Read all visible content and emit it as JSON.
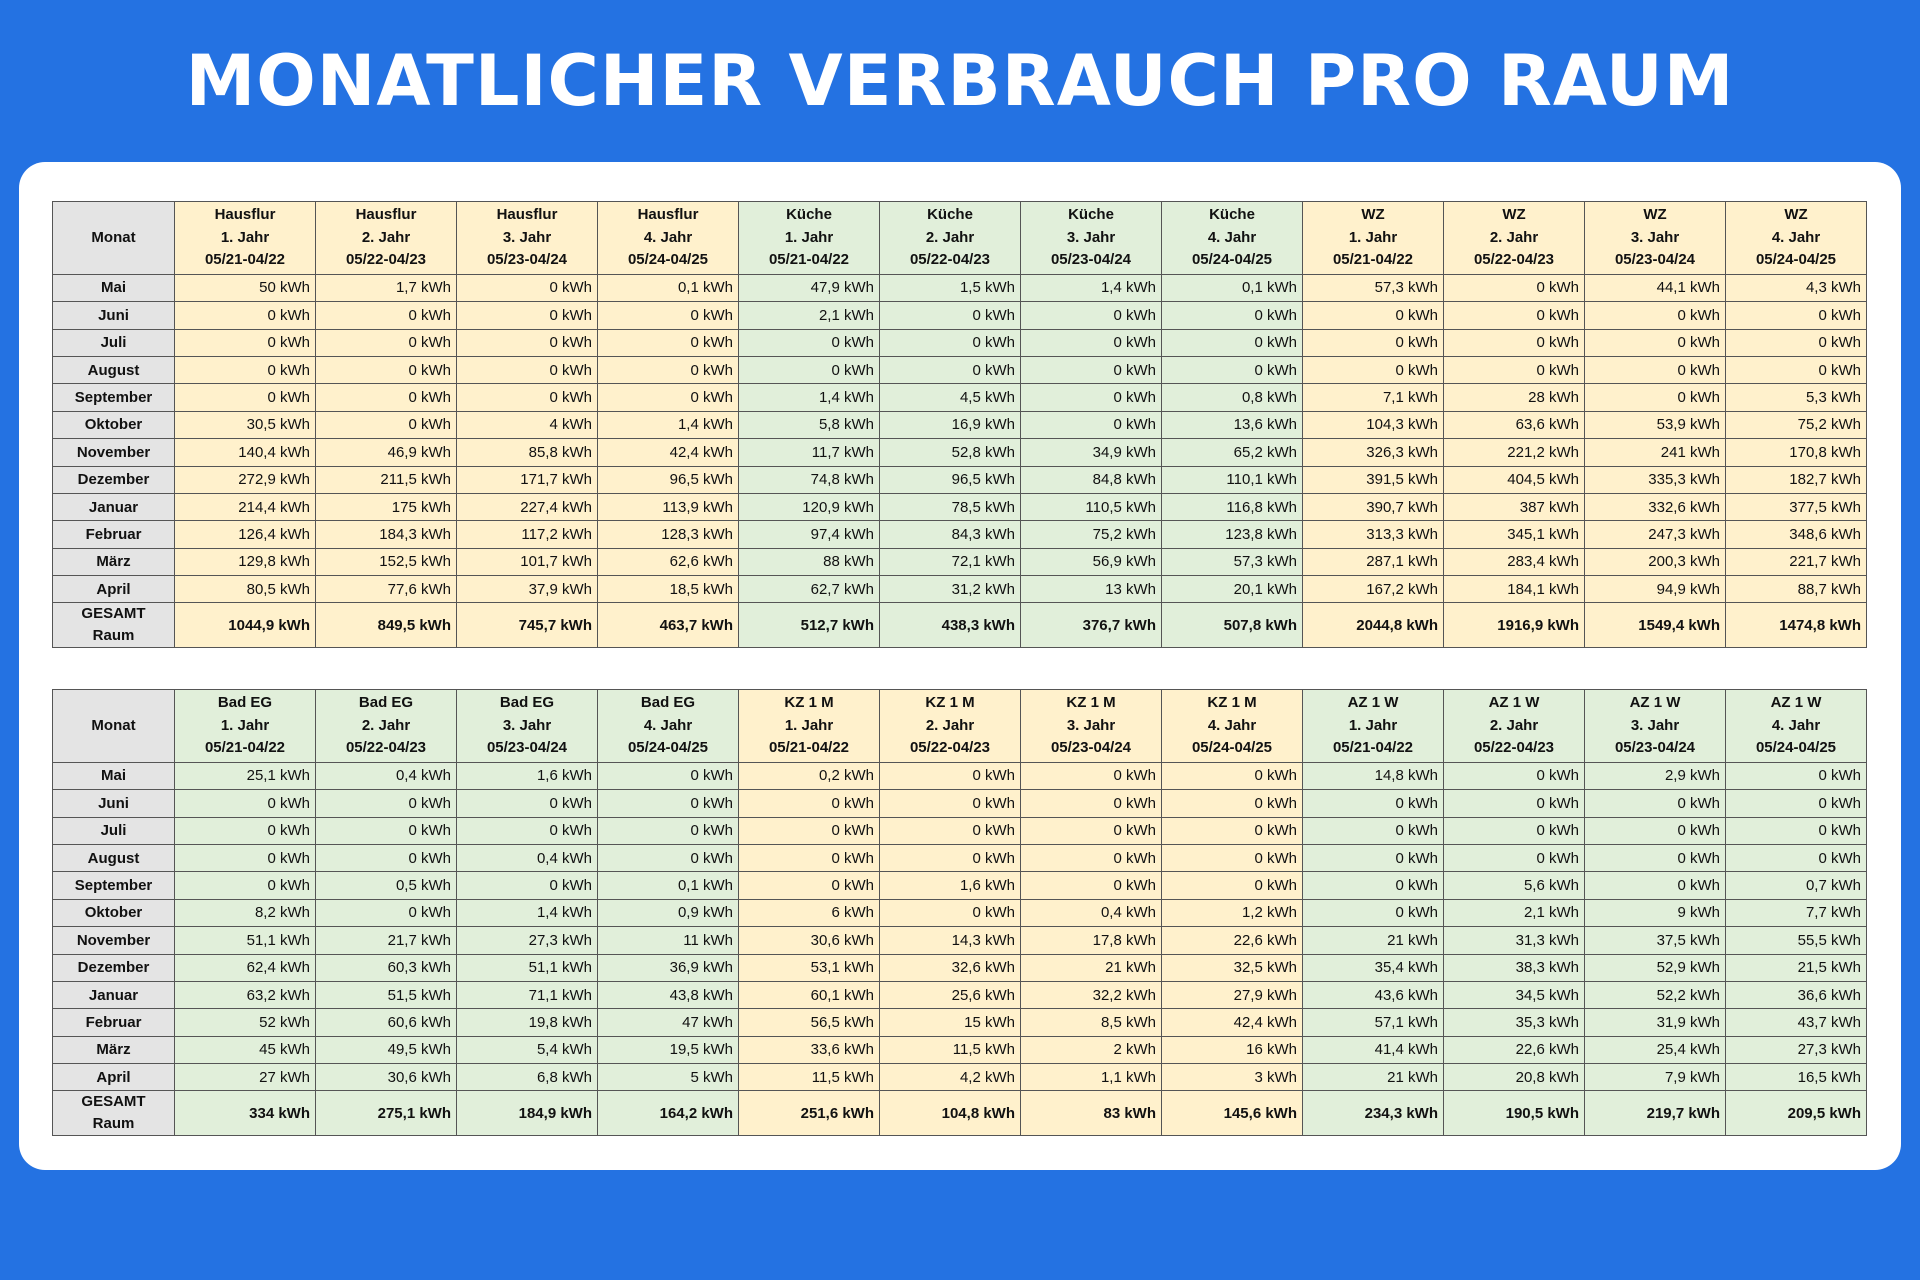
{
  "page_title": "MONATLICHER VERBRAUCH PRO RAUM",
  "month_header": "Monat",
  "months": [
    "Mai",
    "Juni",
    "Juli",
    "August",
    "September",
    "Oktober",
    "November",
    "Dezember",
    "Januar",
    "Februar",
    "März",
    "April"
  ],
  "total_label_line1": "GESAMT",
  "total_label_line2": "Raum",
  "colors": {
    "background": "#2472E2",
    "yellow_cell": "#FFF1CC",
    "green_cell": "#E1EFDA",
    "month_cell": "#E4E4E4"
  },
  "tables": [
    {
      "columns": [
        {
          "room": "Hausflur",
          "year": "1. Jahr",
          "period": "05/21-04/22",
          "color": "yellow"
        },
        {
          "room": "Hausflur",
          "year": "2. Jahr",
          "period": "05/22-04/23",
          "color": "yellow"
        },
        {
          "room": "Hausflur",
          "year": "3. Jahr",
          "period": "05/23-04/24",
          "color": "yellow"
        },
        {
          "room": "Hausflur",
          "year": "4. Jahr",
          "period": "05/24-04/25",
          "color": "yellow"
        },
        {
          "room": "Küche",
          "year": "1. Jahr",
          "period": "05/21-04/22",
          "color": "green"
        },
        {
          "room": "Küche",
          "year": "2. Jahr",
          "period": "05/22-04/23",
          "color": "green"
        },
        {
          "room": "Küche",
          "year": "3. Jahr",
          "period": "05/23-04/24",
          "color": "green"
        },
        {
          "room": "Küche",
          "year": "4. Jahr",
          "period": "05/24-04/25",
          "color": "green"
        },
        {
          "room": "WZ",
          "year": "1. Jahr",
          "period": "05/21-04/22",
          "color": "yellow"
        },
        {
          "room": "WZ",
          "year": "2. Jahr",
          "period": "05/22-04/23",
          "color": "yellow"
        },
        {
          "room": "WZ",
          "year": "3. Jahr",
          "period": "05/23-04/24",
          "color": "yellow"
        },
        {
          "room": "WZ",
          "year": "4. Jahr",
          "period": "05/24-04/25",
          "color": "yellow"
        }
      ],
      "rows": [
        [
          "50 kWh",
          "1,7 kWh",
          "0 kWh",
          "0,1 kWh",
          "47,9 kWh",
          "1,5 kWh",
          "1,4 kWh",
          "0,1 kWh",
          "57,3 kWh",
          "0 kWh",
          "44,1 kWh",
          "4,3 kWh"
        ],
        [
          "0 kWh",
          "0 kWh",
          "0 kWh",
          "0 kWh",
          "2,1 kWh",
          "0 kWh",
          "0 kWh",
          "0 kWh",
          "0 kWh",
          "0 kWh",
          "0 kWh",
          "0 kWh"
        ],
        [
          "0 kWh",
          "0 kWh",
          "0 kWh",
          "0 kWh",
          "0 kWh",
          "0 kWh",
          "0 kWh",
          "0 kWh",
          "0 kWh",
          "0 kWh",
          "0 kWh",
          "0 kWh"
        ],
        [
          "0 kWh",
          "0 kWh",
          "0 kWh",
          "0 kWh",
          "0 kWh",
          "0 kWh",
          "0 kWh",
          "0 kWh",
          "0 kWh",
          "0 kWh",
          "0 kWh",
          "0 kWh"
        ],
        [
          "0 kWh",
          "0 kWh",
          "0 kWh",
          "0 kWh",
          "1,4 kWh",
          "4,5 kWh",
          "0 kWh",
          "0,8 kWh",
          "7,1 kWh",
          "28 kWh",
          "0 kWh",
          "5,3 kWh"
        ],
        [
          "30,5 kWh",
          "0 kWh",
          "4 kWh",
          "1,4 kWh",
          "5,8 kWh",
          "16,9 kWh",
          "0 kWh",
          "13,6 kWh",
          "104,3 kWh",
          "63,6 kWh",
          "53,9 kWh",
          "75,2 kWh"
        ],
        [
          "140,4 kWh",
          "46,9 kWh",
          "85,8 kWh",
          "42,4 kWh",
          "11,7 kWh",
          "52,8 kWh",
          "34,9 kWh",
          "65,2 kWh",
          "326,3 kWh",
          "221,2 kWh",
          "241 kWh",
          "170,8 kWh"
        ],
        [
          "272,9 kWh",
          "211,5 kWh",
          "171,7 kWh",
          "96,5 kWh",
          "74,8 kWh",
          "96,5 kWh",
          "84,8 kWh",
          "110,1 kWh",
          "391,5 kWh",
          "404,5 kWh",
          "335,3 kWh",
          "182,7 kWh"
        ],
        [
          "214,4 kWh",
          "175 kWh",
          "227,4 kWh",
          "113,9 kWh",
          "120,9 kWh",
          "78,5 kWh",
          "110,5 kWh",
          "116,8 kWh",
          "390,7 kWh",
          "387 kWh",
          "332,6 kWh",
          "377,5 kWh"
        ],
        [
          "126,4 kWh",
          "184,3 kWh",
          "117,2 kWh",
          "128,3 kWh",
          "97,4 kWh",
          "84,3 kWh",
          "75,2 kWh",
          "123,8 kWh",
          "313,3 kWh",
          "345,1 kWh",
          "247,3 kWh",
          "348,6 kWh"
        ],
        [
          "129,8 kWh",
          "152,5 kWh",
          "101,7 kWh",
          "62,6 kWh",
          "88 kWh",
          "72,1 kWh",
          "56,9 kWh",
          "57,3 kWh",
          "287,1 kWh",
          "283,4 kWh",
          "200,3 kWh",
          "221,7 kWh"
        ],
        [
          "80,5 kWh",
          "77,6 kWh",
          "37,9 kWh",
          "18,5 kWh",
          "62,7 kWh",
          "31,2 kWh",
          "13 kWh",
          "20,1 kWh",
          "167,2 kWh",
          "184,1 kWh",
          "94,9 kWh",
          "88,7 kWh"
        ]
      ],
      "totals": [
        "1044,9 kWh",
        "849,5 kWh",
        "745,7 kWh",
        "463,7 kWh",
        "512,7 kWh",
        "438,3 kWh",
        "376,7 kWh",
        "507,8 kWh",
        "2044,8 kWh",
        "1916,9 kWh",
        "1549,4 kWh",
        "1474,8 kWh"
      ]
    },
    {
      "columns": [
        {
          "room": "Bad EG",
          "year": "1. Jahr",
          "period": "05/21-04/22",
          "color": "green"
        },
        {
          "room": "Bad EG",
          "year": "2. Jahr",
          "period": "05/22-04/23",
          "color": "green"
        },
        {
          "room": "Bad EG",
          "year": "3. Jahr",
          "period": "05/23-04/24",
          "color": "green"
        },
        {
          "room": "Bad EG",
          "year": "4. Jahr",
          "period": "05/24-04/25",
          "color": "green"
        },
        {
          "room": "KZ 1 M",
          "year": "1. Jahr",
          "period": "05/21-04/22",
          "color": "yellow"
        },
        {
          "room": "KZ 1 M",
          "year": "2. Jahr",
          "period": "05/22-04/23",
          "color": "yellow"
        },
        {
          "room": "KZ 1 M",
          "year": "3. Jahr",
          "period": "05/23-04/24",
          "color": "yellow"
        },
        {
          "room": "KZ 1 M",
          "year": "4. Jahr",
          "period": "05/24-04/25",
          "color": "yellow"
        },
        {
          "room": "AZ 1 W",
          "year": "1. Jahr",
          "period": "05/21-04/22",
          "color": "green"
        },
        {
          "room": "AZ 1 W",
          "year": "2. Jahr",
          "period": "05/22-04/23",
          "color": "green"
        },
        {
          "room": "AZ 1 W",
          "year": "3. Jahr",
          "period": "05/23-04/24",
          "color": "green"
        },
        {
          "room": "AZ 1 W",
          "year": "4. Jahr",
          "period": "05/24-04/25",
          "color": "green"
        }
      ],
      "rows": [
        [
          "25,1 kWh",
          "0,4 kWh",
          "1,6 kWh",
          "0 kWh",
          "0,2 kWh",
          "0 kWh",
          "0 kWh",
          "0 kWh",
          "14,8 kWh",
          "0 kWh",
          "2,9 kWh",
          "0 kWh"
        ],
        [
          "0 kWh",
          "0 kWh",
          "0 kWh",
          "0 kWh",
          "0 kWh",
          "0 kWh",
          "0 kWh",
          "0 kWh",
          "0 kWh",
          "0 kWh",
          "0 kWh",
          "0 kWh"
        ],
        [
          "0 kWh",
          "0 kWh",
          "0 kWh",
          "0 kWh",
          "0 kWh",
          "0 kWh",
          "0 kWh",
          "0 kWh",
          "0 kWh",
          "0 kWh",
          "0 kWh",
          "0 kWh"
        ],
        [
          "0 kWh",
          "0 kWh",
          "0,4 kWh",
          "0 kWh",
          "0 kWh",
          "0 kWh",
          "0 kWh",
          "0 kWh",
          "0 kWh",
          "0 kWh",
          "0 kWh",
          "0 kWh"
        ],
        [
          "0 kWh",
          "0,5 kWh",
          "0 kWh",
          "0,1 kWh",
          "0 kWh",
          "1,6 kWh",
          "0 kWh",
          "0 kWh",
          "0 kWh",
          "5,6 kWh",
          "0 kWh",
          "0,7 kWh"
        ],
        [
          "8,2 kWh",
          "0 kWh",
          "1,4 kWh",
          "0,9 kWh",
          "6 kWh",
          "0 kWh",
          "0,4 kWh",
          "1,2 kWh",
          "0 kWh",
          "2,1 kWh",
          "9 kWh",
          "7,7 kWh"
        ],
        [
          "51,1 kWh",
          "21,7 kWh",
          "27,3 kWh",
          "11 kWh",
          "30,6 kWh",
          "14,3 kWh",
          "17,8 kWh",
          "22,6 kWh",
          "21 kWh",
          "31,3 kWh",
          "37,5 kWh",
          "55,5 kWh"
        ],
        [
          "62,4 kWh",
          "60,3 kWh",
          "51,1 kWh",
          "36,9 kWh",
          "53,1 kWh",
          "32,6 kWh",
          "21 kWh",
          "32,5 kWh",
          "35,4 kWh",
          "38,3 kWh",
          "52,9 kWh",
          "21,5 kWh"
        ],
        [
          "63,2 kWh",
          "51,5 kWh",
          "71,1 kWh",
          "43,8 kWh",
          "60,1 kWh",
          "25,6 kWh",
          "32,2 kWh",
          "27,9 kWh",
          "43,6 kWh",
          "34,5 kWh",
          "52,2 kWh",
          "36,6 kWh"
        ],
        [
          "52 kWh",
          "60,6 kWh",
          "19,8 kWh",
          "47 kWh",
          "56,5 kWh",
          "15 kWh",
          "8,5 kWh",
          "42,4 kWh",
          "57,1 kWh",
          "35,3 kWh",
          "31,9 kWh",
          "43,7 kWh"
        ],
        [
          "45 kWh",
          "49,5 kWh",
          "5,4 kWh",
          "19,5 kWh",
          "33,6 kWh",
          "11,5 kWh",
          "2 kWh",
          "16 kWh",
          "41,4 kWh",
          "22,6 kWh",
          "25,4 kWh",
          "27,3 kWh"
        ],
        [
          "27 kWh",
          "30,6 kWh",
          "6,8 kWh",
          "5 kWh",
          "11,5 kWh",
          "4,2 kWh",
          "1,1 kWh",
          "3 kWh",
          "21 kWh",
          "20,8 kWh",
          "7,9 kWh",
          "16,5 kWh"
        ]
      ],
      "totals": [
        "334 kWh",
        "275,1 kWh",
        "184,9 kWh",
        "164,2 kWh",
        "251,6 kWh",
        "104,8 kWh",
        "83 kWh",
        "145,6 kWh",
        "234,3 kWh",
        "190,5 kWh",
        "219,7 kWh",
        "209,5 kWh"
      ]
    }
  ]
}
